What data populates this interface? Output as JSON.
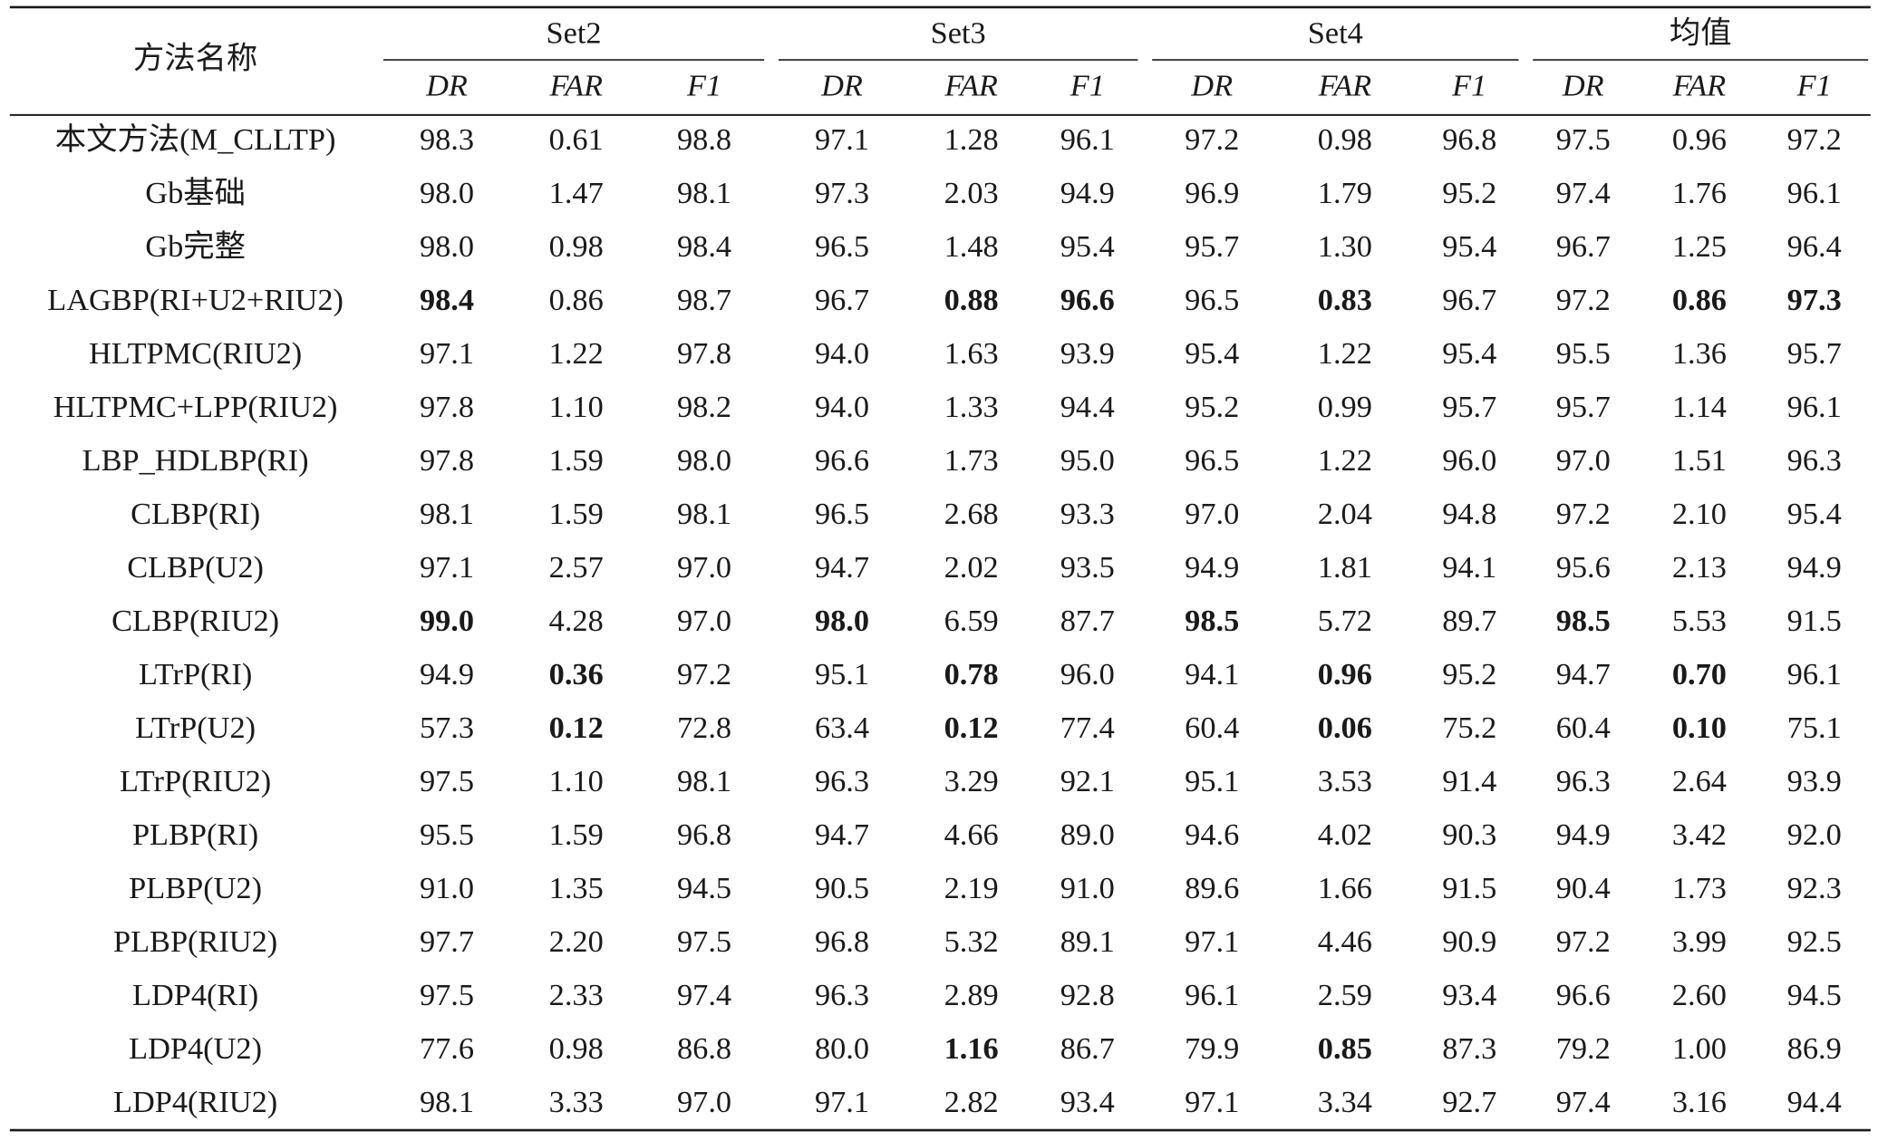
{
  "header": {
    "method": "方法名称",
    "groups": [
      {
        "name": "Set2",
        "columns": [
          "DR",
          "FAR",
          "F1"
        ]
      },
      {
        "name": "Set3",
        "columns": [
          "DR",
          "FAR",
          "F1"
        ]
      },
      {
        "name": "Set4",
        "columns": [
          "DR",
          "FAR",
          "F1"
        ]
      },
      {
        "name": "均值",
        "columns": [
          "DR",
          "FAR",
          "F1"
        ]
      }
    ]
  },
  "rows": [
    {
      "method": "本文方法(M_CLLTP)",
      "values": [
        "98.3",
        "0.61",
        "98.8",
        "97.1",
        "1.28",
        "96.1",
        "97.2",
        "0.98",
        "96.8",
        "97.5",
        "0.96",
        "97.2"
      ],
      "bold": []
    },
    {
      "method": "Gb基础",
      "values": [
        "98.0",
        "1.47",
        "98.1",
        "97.3",
        "2.03",
        "94.9",
        "96.9",
        "1.79",
        "95.2",
        "97.4",
        "1.76",
        "96.1"
      ],
      "bold": []
    },
    {
      "method": "Gb完整",
      "values": [
        "98.0",
        "0.98",
        "98.4",
        "96.5",
        "1.48",
        "95.4",
        "95.7",
        "1.30",
        "95.4",
        "96.7",
        "1.25",
        "96.4"
      ],
      "bold": []
    },
    {
      "method": "LAGBP(RI+U2+RIU2)",
      "values": [
        "98.4",
        "0.86",
        "98.7",
        "96.7",
        "0.88",
        "96.6",
        "96.5",
        "0.83",
        "96.7",
        "97.2",
        "0.86",
        "97.3"
      ],
      "bold": [
        0,
        4,
        5,
        7,
        10,
        11
      ]
    },
    {
      "method": "HLTPMC(RIU2)",
      "values": [
        "97.1",
        "1.22",
        "97.8",
        "94.0",
        "1.63",
        "93.9",
        "95.4",
        "1.22",
        "95.4",
        "95.5",
        "1.36",
        "95.7"
      ],
      "bold": []
    },
    {
      "method": "HLTPMC+LPP(RIU2)",
      "values": [
        "97.8",
        "1.10",
        "98.2",
        "94.0",
        "1.33",
        "94.4",
        "95.2",
        "0.99",
        "95.7",
        "95.7",
        "1.14",
        "96.1"
      ],
      "bold": []
    },
    {
      "method": "LBP_HDLBP(RI)",
      "values": [
        "97.8",
        "1.59",
        "98.0",
        "96.6",
        "1.73",
        "95.0",
        "96.5",
        "1.22",
        "96.0",
        "97.0",
        "1.51",
        "96.3"
      ],
      "bold": []
    },
    {
      "method": "CLBP(RI)",
      "values": [
        "98.1",
        "1.59",
        "98.1",
        "96.5",
        "2.68",
        "93.3",
        "97.0",
        "2.04",
        "94.8",
        "97.2",
        "2.10",
        "95.4"
      ],
      "bold": []
    },
    {
      "method": "CLBP(U2)",
      "values": [
        "97.1",
        "2.57",
        "97.0",
        "94.7",
        "2.02",
        "93.5",
        "94.9",
        "1.81",
        "94.1",
        "95.6",
        "2.13",
        "94.9"
      ],
      "bold": []
    },
    {
      "method": "CLBP(RIU2)",
      "values": [
        "99.0",
        "4.28",
        "97.0",
        "98.0",
        "6.59",
        "87.7",
        "98.5",
        "5.72",
        "89.7",
        "98.5",
        "5.53",
        "91.5"
      ],
      "bold": [
        0,
        3,
        6,
        9
      ]
    },
    {
      "method": "LTrP(RI)",
      "values": [
        "94.9",
        "0.36",
        "97.2",
        "95.1",
        "0.78",
        "96.0",
        "94.1",
        "0.96",
        "95.2",
        "94.7",
        "0.70",
        "96.1"
      ],
      "bold": [
        1,
        4,
        7,
        10
      ]
    },
    {
      "method": "LTrP(U2)",
      "values": [
        "57.3",
        "0.12",
        "72.8",
        "63.4",
        "0.12",
        "77.4",
        "60.4",
        "0.06",
        "75.2",
        "60.4",
        "0.10",
        "75.1"
      ],
      "bold": [
        1,
        4,
        7,
        10
      ]
    },
    {
      "method": "LTrP(RIU2)",
      "values": [
        "97.5",
        "1.10",
        "98.1",
        "96.3",
        "3.29",
        "92.1",
        "95.1",
        "3.53",
        "91.4",
        "96.3",
        "2.64",
        "93.9"
      ],
      "bold": []
    },
    {
      "method": "PLBP(RI)",
      "values": [
        "95.5",
        "1.59",
        "96.8",
        "94.7",
        "4.66",
        "89.0",
        "94.6",
        "4.02",
        "90.3",
        "94.9",
        "3.42",
        "92.0"
      ],
      "bold": []
    },
    {
      "method": "PLBP(U2)",
      "values": [
        "91.0",
        "1.35",
        "94.5",
        "90.5",
        "2.19",
        "91.0",
        "89.6",
        "1.66",
        "91.5",
        "90.4",
        "1.73",
        "92.3"
      ],
      "bold": []
    },
    {
      "method": "PLBP(RIU2)",
      "values": [
        "97.7",
        "2.20",
        "97.5",
        "96.8",
        "5.32",
        "89.1",
        "97.1",
        "4.46",
        "90.9",
        "97.2",
        "3.99",
        "92.5"
      ],
      "bold": []
    },
    {
      "method": "LDP4(RI)",
      "values": [
        "97.5",
        "2.33",
        "97.4",
        "96.3",
        "2.89",
        "92.8",
        "96.1",
        "2.59",
        "93.4",
        "96.6",
        "2.60",
        "94.5"
      ],
      "bold": []
    },
    {
      "method": "LDP4(U2)",
      "values": [
        "77.6",
        "0.98",
        "86.8",
        "80.0",
        "1.16",
        "86.7",
        "79.9",
        "0.85",
        "87.3",
        "79.2",
        "1.00",
        "86.9"
      ],
      "bold": [
        4,
        7
      ]
    },
    {
      "method": "LDP4(RIU2)",
      "values": [
        "98.1",
        "3.33",
        "97.0",
        "97.1",
        "2.82",
        "93.4",
        "97.1",
        "3.34",
        "92.7",
        "97.4",
        "3.16",
        "94.4"
      ],
      "bold": []
    }
  ]
}
